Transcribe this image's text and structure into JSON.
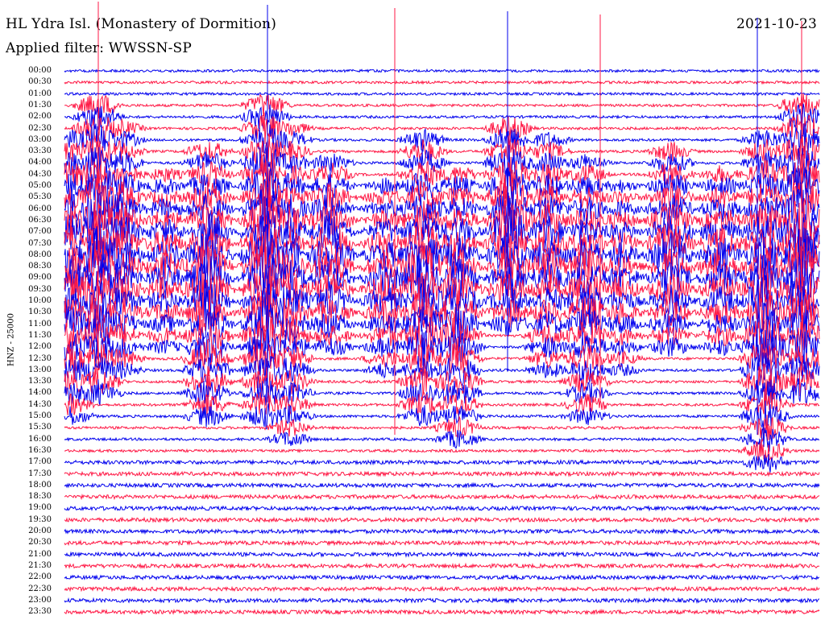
{
  "header": {
    "station": "HL Ydra Isl. (Monastery of Dormition)",
    "date": "2021-10-23",
    "filter": "Applied filter: WWSSN-SP"
  },
  "axis_label": "HNZ - 25000",
  "time_labels": [
    "00:00",
    "00:30",
    "01:00",
    "01:30",
    "02:00",
    "02:30",
    "03:00",
    "03:30",
    "04:00",
    "04:30",
    "05:00",
    "05:30",
    "06:00",
    "06:30",
    "07:00",
    "07:30",
    "08:00",
    "08:30",
    "09:00",
    "09:30",
    "10:00",
    "10:30",
    "11:00",
    "11:30",
    "12:00",
    "12:30",
    "13:00",
    "13:30",
    "14:00",
    "14:30",
    "15:00",
    "15:30",
    "16:00",
    "16:30",
    "17:00",
    "17:30",
    "18:00",
    "18:30",
    "19:00",
    "19:30",
    "20:00",
    "20:30",
    "21:00",
    "21:30",
    "22:00",
    "22:30",
    "23:00",
    "23:30"
  ],
  "colors": {
    "trace_a": "#0000ee",
    "trace_b": "#ff1744",
    "text": "#000000"
  }
}
